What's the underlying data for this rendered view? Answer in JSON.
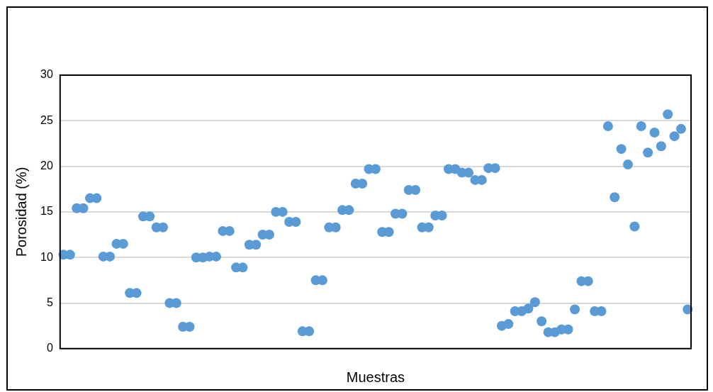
{
  "chart_data": {
    "type": "scatter",
    "xlabel": "Muestras",
    "ylabel": "Porosidad (%)",
    "categories": [
      null,
      null,
      null,
      null,
      null,
      null,
      null,
      null,
      null,
      null,
      null,
      null,
      null,
      null,
      null,
      null,
      null,
      null,
      null,
      null,
      null,
      null,
      null,
      null,
      null,
      null,
      null,
      null,
      null,
      null,
      null,
      null,
      null,
      null,
      null,
      null,
      null,
      null,
      null,
      null,
      null,
      null,
      null,
      null,
      null,
      null,
      null,
      null,
      null,
      null,
      null,
      null,
      null,
      null,
      null,
      null,
      null,
      null,
      null,
      null,
      null,
      null,
      null,
      null,
      null,
      null,
      null,
      null,
      null,
      null,
      null,
      null,
      null,
      null,
      null,
      null,
      null,
      null,
      null,
      null,
      null,
      null,
      null,
      null,
      null,
      null,
      null,
      null,
      null,
      null,
      null,
      null,
      null,
      null,
      null
    ],
    "series": [
      {
        "color": "#5b9bd5",
        "values": [
          10.3,
          10.3,
          15.4,
          15.4,
          16.5,
          16.5,
          10.1,
          10.1,
          11.5,
          11.5,
          6.1,
          6.1,
          14.5,
          14.5,
          13.3,
          13.3,
          5.0,
          5.0,
          2.4,
          2.4,
          10.0,
          10.0,
          10.1,
          10.1,
          12.9,
          12.9,
          8.9,
          8.9,
          11.4,
          11.4,
          12.5,
          12.5,
          15.0,
          15.0,
          13.9,
          13.9,
          1.9,
          1.9,
          7.5,
          7.5,
          13.3,
          13.3,
          15.2,
          15.2,
          18.1,
          18.1,
          19.7,
          19.7,
          12.8,
          12.8,
          14.8,
          14.8,
          17.4,
          17.4,
          13.3,
          13.3,
          14.6,
          14.6,
          19.7,
          19.7,
          19.3,
          19.3,
          18.5,
          18.5,
          19.8,
          19.8,
          2.5,
          2.7,
          4.1,
          4.1,
          4.4,
          5.1,
          3.0,
          1.8,
          1.8,
          2.1,
          2.1,
          4.3,
          7.4,
          7.4,
          4.1,
          4.1,
          24.4,
          16.6,
          21.9,
          20.2,
          13.4,
          24.4,
          21.5,
          23.7,
          22.2,
          25.7,
          23.3,
          24.1,
          4.3
        ]
      }
    ],
    "ylim": [
      0,
      30
    ],
    "yticks": [
      0,
      5,
      10,
      15,
      20,
      25,
      30
    ],
    "grid": "y",
    "legend": false,
    "marker": "circle"
  }
}
